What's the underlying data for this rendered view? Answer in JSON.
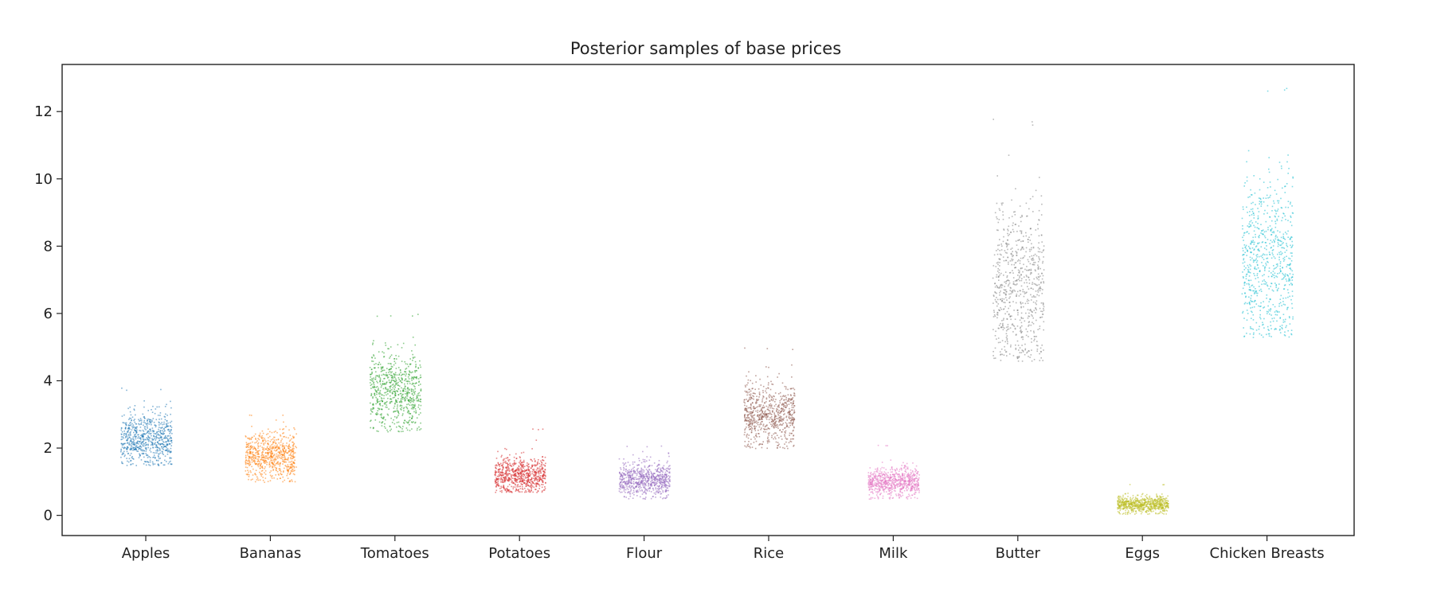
{
  "chart_data": {
    "type": "scatter",
    "title": "Posterior samples of base prices",
    "xlabel": "",
    "ylabel": "",
    "ylim": [
      -0.6,
      13.4
    ],
    "yticks": [
      0,
      2,
      4,
      6,
      8,
      10,
      12
    ],
    "grid": false,
    "categories": [
      "Apples",
      "Bananas",
      "Tomatoes",
      "Potatoes",
      "Flour",
      "Rice",
      "Milk",
      "Butter",
      "Eggs",
      "Chicken Breasts"
    ],
    "series": [
      {
        "category": "Apples",
        "color": "#1f77b4",
        "center": 2.3,
        "spread": 0.4,
        "min": 1.5,
        "max": 3.8
      },
      {
        "category": "Bananas",
        "color": "#ff7f0e",
        "center": 1.8,
        "spread": 0.35,
        "min": 1.0,
        "max": 3.0
      },
      {
        "category": "Tomatoes",
        "color": "#2ca02c",
        "center": 3.7,
        "spread": 0.6,
        "min": 2.5,
        "max": 6.0
      },
      {
        "category": "Potatoes",
        "color": "#d62728",
        "center": 1.2,
        "spread": 0.28,
        "min": 0.7,
        "max": 2.6
      },
      {
        "category": "Flour",
        "color": "#9467bd",
        "center": 1.1,
        "spread": 0.25,
        "min": 0.5,
        "max": 2.1
      },
      {
        "category": "Rice",
        "color": "#8c564b",
        "center": 3.0,
        "spread": 0.5,
        "min": 2.0,
        "max": 5.0
      },
      {
        "category": "Milk",
        "color": "#e377c2",
        "center": 1.0,
        "spread": 0.22,
        "min": 0.5,
        "max": 2.1
      },
      {
        "category": "Butter",
        "color": "#7f7f7f",
        "center": 6.8,
        "spread": 1.2,
        "min": 4.6,
        "max": 11.8
      },
      {
        "category": "Eggs",
        "color": "#bcbd22",
        "center": 0.35,
        "spread": 0.12,
        "min": 0.05,
        "max": 0.95
      },
      {
        "category": "Chicken Breasts",
        "color": "#17becf",
        "center": 7.5,
        "spread": 1.3,
        "min": 5.3,
        "max": 12.8
      }
    ]
  }
}
